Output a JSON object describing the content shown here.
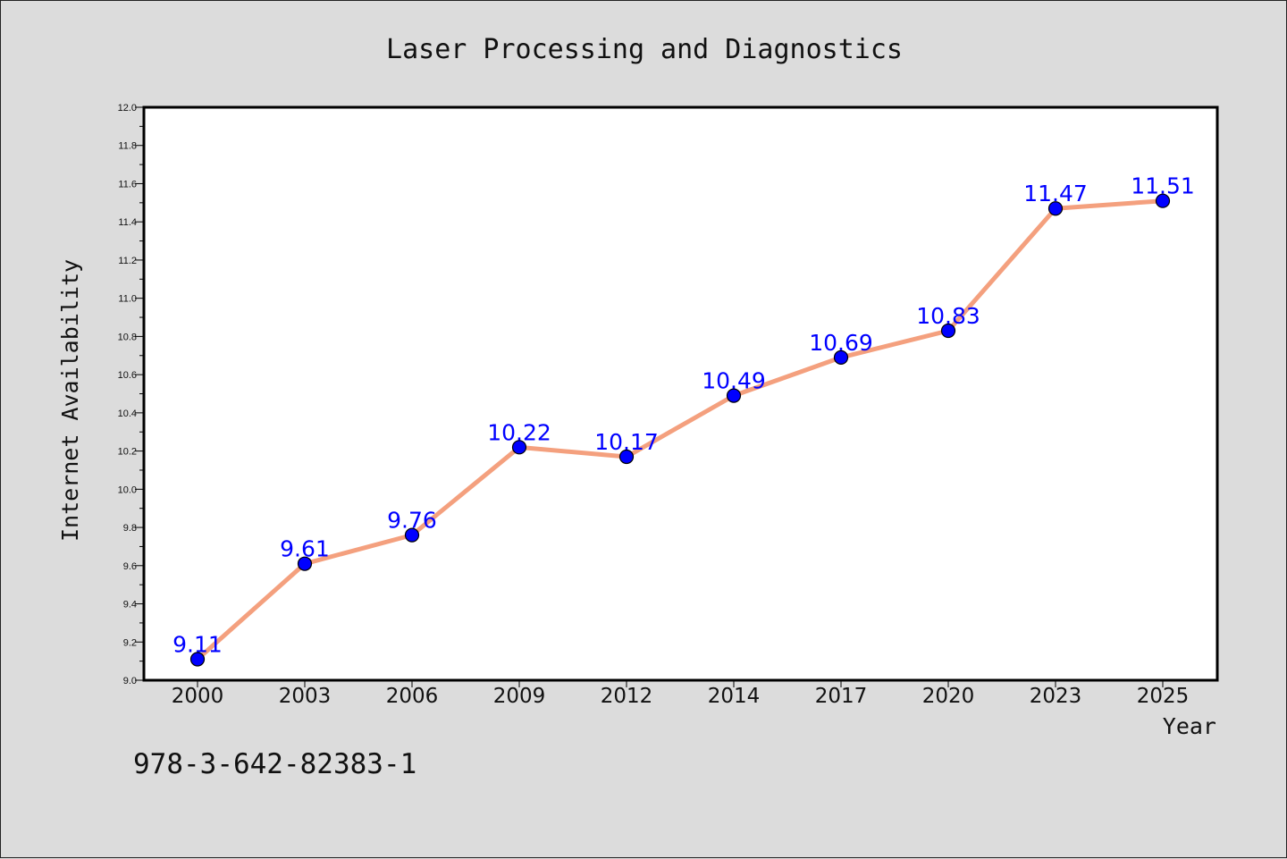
{
  "colors": {
    "background": "#dcdcdc",
    "plot_background": "#ffffff",
    "line": "#f4a07e",
    "marker": "#0000ff",
    "data_label": "#0000ff"
  },
  "footer": {
    "code": "978-3-642-82383-1"
  },
  "chart_data": {
    "type": "line",
    "title": "Laser Processing and Diagnostics",
    "xlabel": "Year",
    "ylabel": "Internet Availability",
    "categories": [
      "2000",
      "2003",
      "2006",
      "2009",
      "2012",
      "2014",
      "2017",
      "2020",
      "2023",
      "2025"
    ],
    "series": [
      {
        "values": [
          9.11,
          9.61,
          9.76,
          10.22,
          10.17,
          10.49,
          10.69,
          10.83,
          11.47,
          11.51
        ],
        "labels": [
          "9.11",
          "9.61",
          "9.76",
          "10.22",
          "10.17",
          "10.49",
          "10.69",
          "10.83",
          "11.47",
          "11.51"
        ]
      }
    ],
    "ylim": [
      9.0,
      12.0
    ],
    "yticks": [
      "9.0",
      "9.2",
      "9.4",
      "9.6",
      "9.8",
      "10.0",
      "10.2",
      "10.4",
      "10.6",
      "10.8",
      "11.0",
      "11.2",
      "11.4",
      "11.6",
      "11.8",
      "12.0"
    ],
    "grid": false,
    "legend": "none",
    "marker": "circle"
  }
}
